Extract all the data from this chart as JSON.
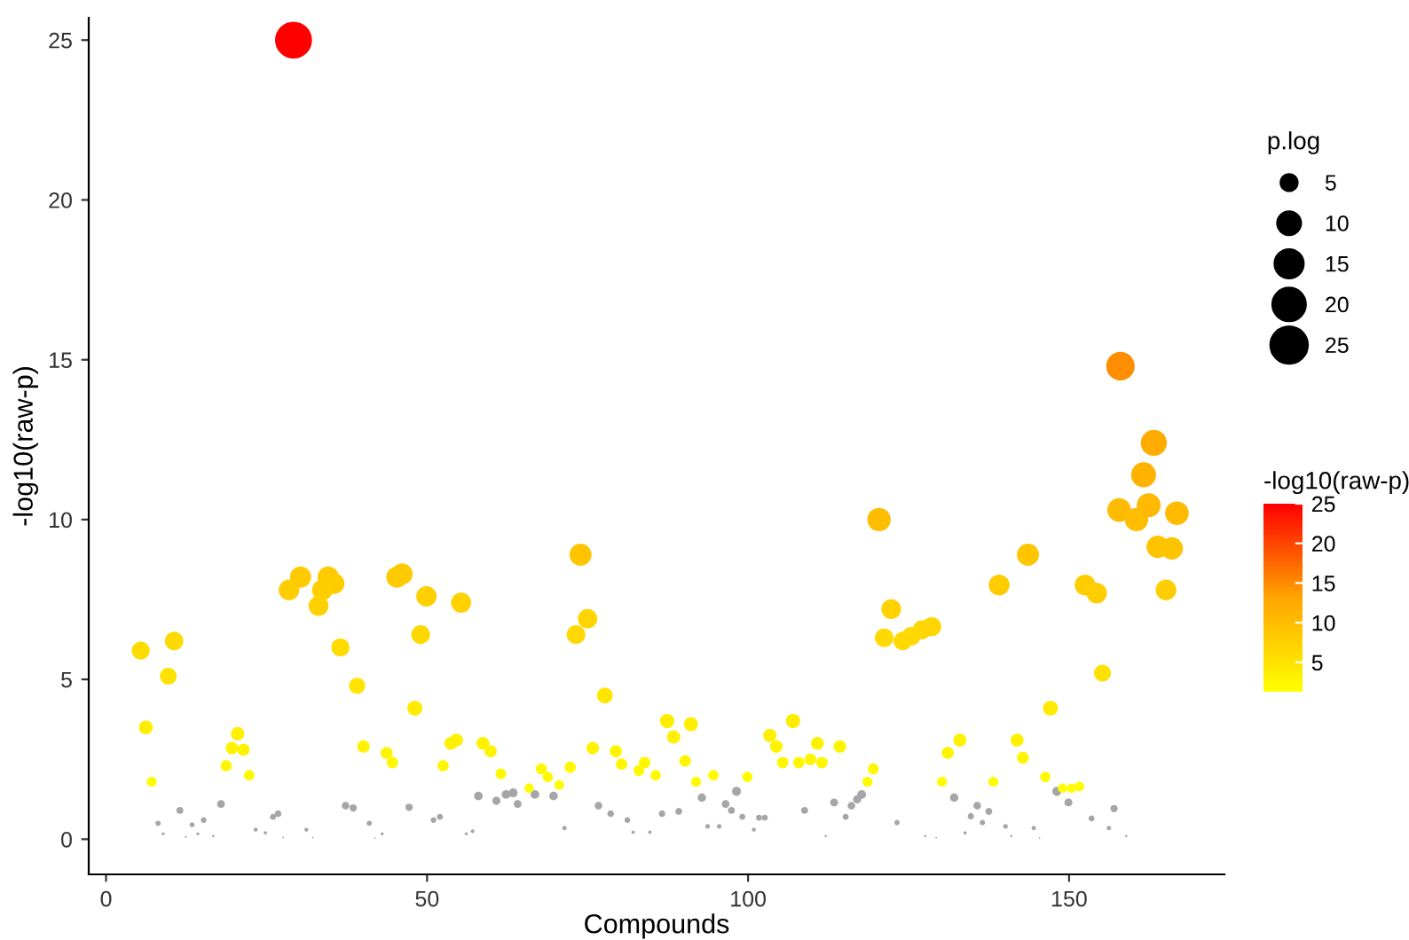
{
  "chart_data": {
    "type": "bubble",
    "xlabel": "Compounds",
    "ylabel": "-log10(raw-p)",
    "legend_title": "p.log",
    "clabel": "-log10(raw-p)",
    "xlim": [
      -2.7,
      174.2
    ],
    "xticks": [
      0,
      50,
      100,
      150
    ],
    "ylim": [
      -1.1,
      25.7
    ],
    "yticks": [
      0,
      5,
      10,
      15,
      20,
      25
    ],
    "clim": [
      1.3,
      25
    ],
    "cticks": [
      5,
      10,
      15,
      20,
      25
    ],
    "size_legend": [
      5,
      10,
      15,
      20,
      25
    ],
    "grid": false,
    "series": [
      {
        "color": "#a6a6a6",
        "x": [
          8.1,
          8.9,
          11.5,
          13.4,
          15.2,
          12.4,
          14.3,
          16.7,
          17.9,
          23.3,
          24.8,
          26,
          26.8,
          27.6,
          31.2,
          32.2,
          37.3,
          38.5,
          41,
          41.9,
          43,
          47.2,
          51,
          52,
          56.1,
          57.1,
          58,
          60.8,
          62.3,
          63.4,
          64.1,
          66.8,
          69.7,
          71.4,
          76.7,
          78.6,
          81.2,
          82.1,
          84.7,
          86.6,
          89.2,
          92.8,
          93.7,
          95.5,
          96.5,
          97.4,
          98.2,
          99.1,
          100.9,
          101.7,
          102.6,
          108.8,
          112.1,
          113.4,
          115.2,
          116.1,
          117,
          117.7,
          123.2,
          127.6,
          129.3,
          132.1,
          133.8,
          134.7,
          135.7,
          136.5,
          137.5,
          140.1,
          141,
          144.5,
          145.4,
          148.1,
          149.9,
          153.5,
          156.2,
          157,
          158.9
        ],
        "values": [
          0.5,
          0.17,
          0.9,
          0.45,
          0.6,
          0.07,
          0.17,
          0.1,
          1.1,
          0.3,
          0.2,
          0.7,
          0.8,
          0.05,
          0.3,
          0.05,
          1.05,
          0.98,
          0.5,
          0.04,
          0.17,
          1.0,
          0.6,
          0.7,
          0.17,
          0.25,
          1.35,
          1.2,
          1.4,
          1.45,
          1.1,
          1.4,
          1.35,
          0.35,
          1.05,
          0.8,
          0.6,
          0.22,
          0.22,
          0.8,
          0.87,
          1.3,
          0.4,
          0.4,
          1.1,
          0.9,
          1.5,
          0.7,
          0.3,
          0.67,
          0.67,
          0.9,
          0.1,
          1.15,
          0.7,
          1.05,
          1.25,
          1.4,
          0.52,
          0.1,
          0.05,
          1.3,
          0.2,
          0.72,
          1.05,
          0.52,
          0.87,
          0.4,
          0.1,
          0.35,
          0.04,
          1.5,
          1.15,
          0.65,
          0.35,
          0.96,
          0.1
        ],
        "sizes": [
          0.5,
          0.17,
          0.9,
          0.45,
          0.6,
          0.07,
          0.17,
          0.1,
          1.1,
          0.3,
          0.2,
          0.7,
          0.8,
          0.05,
          0.3,
          0.05,
          1.05,
          0.98,
          0.5,
          0.04,
          0.17,
          1.0,
          0.6,
          0.7,
          0.17,
          0.25,
          1.35,
          1.2,
          1.4,
          1.45,
          1.1,
          1.4,
          1.35,
          0.35,
          1.05,
          0.8,
          0.6,
          0.22,
          0.22,
          0.8,
          0.87,
          1.3,
          0.4,
          0.4,
          1.1,
          0.9,
          1.5,
          0.7,
          0.3,
          0.67,
          0.67,
          0.9,
          0.1,
          1.15,
          0.7,
          1.05,
          1.25,
          1.4,
          0.52,
          0.1,
          0.05,
          1.3,
          0.2,
          0.72,
          1.05,
          0.52,
          0.87,
          0.4,
          0.1,
          0.35,
          0.04,
          1.5,
          1.15,
          0.65,
          0.35,
          0.96,
          0.1
        ]
      },
      {
        "x": [
          5.4,
          10.6,
          9.7,
          6.2,
          7.1,
          20.5,
          19.6,
          21.4,
          18.7,
          22.3,
          28.5,
          30.3,
          34.6,
          35.5,
          33.7,
          33.1,
          36.5,
          39.1,
          40.1,
          43.7,
          44.6,
          46.1,
          45.3,
          49.9,
          49.0,
          48.1,
          52.5,
          53.7,
          55.3,
          54.6,
          73.9,
          75,
          73.2,
          77.7,
          58.7,
          59.9,
          61.5,
          65.9,
          67.8,
          68.8,
          70.6,
          72.3,
          75.8,
          79.4,
          80.3,
          83,
          83.9,
          85.6,
          87.4,
          88.4,
          91.1,
          90.2,
          91.9,
          94.6,
          99.9,
          103.4,
          104.4,
          107,
          105.4,
          107.9,
          109.7,
          110.8,
          111.5,
          114.3,
          119.5,
          118.6,
          120.4,
          122.3,
          121.2,
          124.1,
          125.4,
          127.1,
          128.6,
          130.2,
          131.1,
          133,
          138.2,
          139.1,
          141.9,
          142.8,
          143.6,
          146.3,
          147.1,
          149,
          150.4,
          151.6,
          152.5,
          154.3,
          155.2,
          158,
          163.2,
          161.6,
          157.8,
          160.5,
          162.4,
          166.8,
          163.8,
          166,
          165.1,
          29.2
        ],
        "values": [
          5.9,
          6.2,
          5.1,
          3.5,
          1.8,
          3.3,
          2.85,
          2.8,
          2.3,
          2.0,
          7.8,
          8.2,
          8.2,
          8.0,
          7.8,
          7.3,
          6.0,
          4.8,
          2.9,
          2.7,
          2.4,
          8.3,
          8.2,
          7.6,
          6.4,
          4.1,
          2.3,
          3.0,
          7.4,
          3.1,
          8.9,
          6.9,
          6.4,
          4.5,
          3.0,
          2.75,
          2.05,
          1.6,
          2.2,
          1.95,
          1.7,
          2.25,
          2.85,
          2.75,
          2.35,
          2.15,
          2.4,
          2.0,
          3.7,
          3.2,
          3.6,
          2.45,
          1.8,
          2.0,
          1.95,
          3.25,
          2.9,
          3.7,
          2.4,
          2.4,
          2.5,
          3.0,
          2.4,
          2.9,
          2.2,
          1.8,
          10.0,
          7.2,
          6.3,
          6.2,
          6.35,
          6.55,
          6.65,
          1.8,
          2.7,
          3.1,
          1.8,
          7.95,
          3.1,
          2.55,
          8.9,
          1.95,
          4.1,
          1.6,
          1.6,
          1.65,
          7.95,
          7.7,
          5.2,
          14.8,
          12.4,
          11.4,
          10.3,
          10.0,
          10.45,
          10.2,
          9.15,
          9.1,
          7.8,
          25.0
        ],
        "sizes": [
          5.9,
          6.2,
          5.1,
          3.5,
          1.8,
          3.3,
          2.85,
          2.8,
          2.3,
          2.0,
          7.8,
          8.2,
          8.2,
          8.0,
          7.8,
          7.3,
          6.0,
          4.8,
          2.9,
          2.7,
          2.4,
          8.3,
          8.2,
          7.6,
          6.4,
          4.1,
          2.3,
          3.0,
          7.4,
          3.1,
          8.9,
          6.9,
          6.4,
          4.5,
          3.0,
          2.75,
          2.05,
          1.6,
          2.2,
          1.95,
          1.7,
          2.25,
          2.85,
          2.75,
          2.35,
          2.15,
          2.4,
          2.0,
          3.7,
          3.2,
          3.6,
          2.45,
          1.8,
          2.0,
          1.95,
          3.25,
          2.9,
          3.7,
          2.4,
          2.4,
          2.5,
          3.0,
          2.4,
          2.9,
          2.2,
          1.8,
          10.0,
          7.2,
          6.3,
          6.2,
          6.35,
          6.55,
          6.65,
          1.8,
          2.7,
          3.1,
          1.8,
          7.95,
          3.1,
          2.55,
          8.9,
          1.95,
          4.1,
          1.6,
          1.6,
          1.65,
          7.95,
          7.7,
          5.2,
          14.8,
          12.4,
          11.4,
          10.3,
          10.0,
          10.45,
          10.2,
          9.15,
          9.1,
          7.8,
          25.0
        ],
        "colors": [
          "#ffdc00",
          "#ffda00",
          "#ffe200",
          "#ffee00",
          "#fffb00",
          "#fff000",
          "#fff300",
          "#fff400",
          "#fff700",
          "#fffa00",
          "#ffce00",
          "#ffcb00",
          "#ffcb00",
          "#ffcc00",
          "#ffce00",
          "#ffd100",
          "#ffdb00",
          "#ffe400",
          "#fff300",
          "#fff400",
          "#fff700",
          "#ffca00",
          "#ffcb00",
          "#ffcf00",
          "#ffd800",
          "#ffea00",
          "#fff700",
          "#fff200",
          "#ffd100",
          "#fff100",
          "#ffc500",
          "#ffd400",
          "#ffd800",
          "#ffe700",
          "#fff200",
          "#fff400",
          "#fff900",
          "#fffd00",
          "#fff800",
          "#fffa00",
          "#fffc00",
          "#fff800",
          "#fff300",
          "#fff400",
          "#fff700",
          "#fff900",
          "#fff700",
          "#fffa00",
          "#ffed00",
          "#fff100",
          "#ffee00",
          "#fff600",
          "#fffb00",
          "#fffa00",
          "#fffa00",
          "#fff000",
          "#fff300",
          "#ffed00",
          "#fff700",
          "#fff700",
          "#fff600",
          "#fff200",
          "#fff700",
          "#fff300",
          "#fff800",
          "#fffb00",
          "#ffbd00",
          "#ffd200",
          "#ffd900",
          "#ffda00",
          "#ffd900",
          "#ffd700",
          "#ffd600",
          "#fffb00",
          "#fff400",
          "#fff100",
          "#fffb00",
          "#ffcc00",
          "#fff100",
          "#fff600",
          "#ffc500",
          "#fffa00",
          "#ffea00",
          "#fffd00",
          "#fffd00",
          "#fffc00",
          "#ffcc00",
          "#ffce00",
          "#ffe100",
          "#ff8e00",
          "#ffab00",
          "#ffb200",
          "#ffbb00",
          "#ffbd00",
          "#ffb900",
          "#ffbb00",
          "#ffc300",
          "#ffc400",
          "#ffce00",
          "#ff0000"
        ]
      }
    ]
  }
}
